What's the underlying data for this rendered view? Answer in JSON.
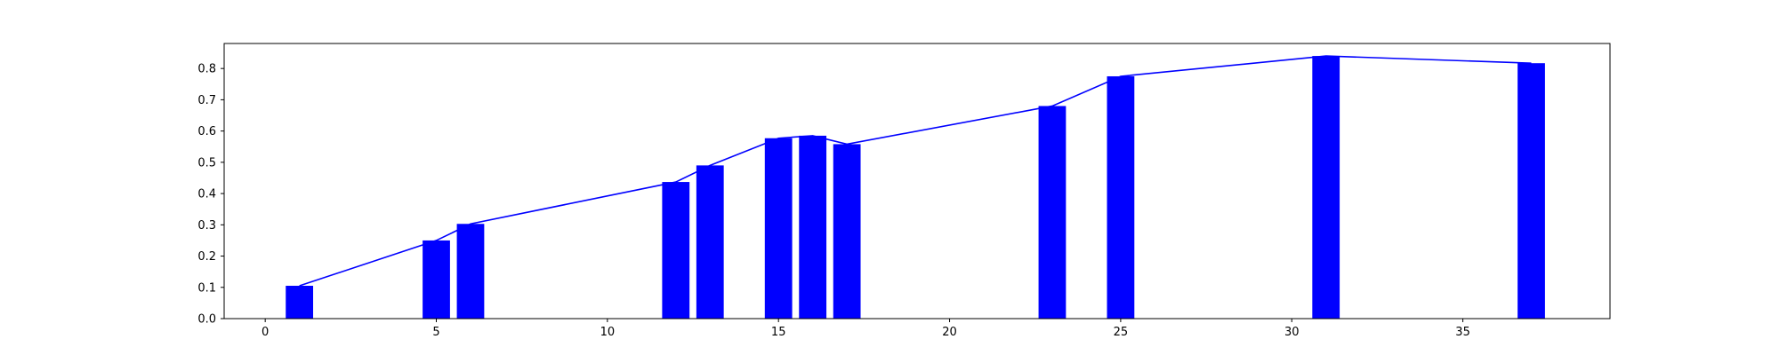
{
  "chart_data": {
    "type": "bar",
    "title": "",
    "xlabel": "",
    "ylabel": "",
    "xlim": [
      -1.2,
      39.3
    ],
    "ylim": [
      0,
      0.88
    ],
    "grid": false,
    "legend": "none",
    "bar_width": 0.8,
    "colors": {
      "bars": "#0000ff",
      "line": "#0000ff",
      "axes": "#000000"
    },
    "x_ticks": [
      0,
      5,
      10,
      15,
      20,
      25,
      30,
      35
    ],
    "x_tick_labels": [
      "0",
      "5",
      "10",
      "15",
      "20",
      "25",
      "30",
      "35"
    ],
    "y_ticks": [
      0.0,
      0.1,
      0.2,
      0.3,
      0.4,
      0.5,
      0.6,
      0.7,
      0.8
    ],
    "y_tick_labels": [
      "0.0",
      "0.1",
      "0.2",
      "0.3",
      "0.4",
      "0.5",
      "0.6",
      "0.7",
      "0.8"
    ],
    "series": [
      {
        "type": "bar",
        "x": [
          1,
          5,
          6,
          12,
          13,
          15,
          16,
          17,
          23,
          25,
          31,
          37
        ],
        "values": [
          0.105,
          0.25,
          0.303,
          0.437,
          0.49,
          0.577,
          0.585,
          0.558,
          0.68,
          0.775,
          0.84,
          0.817
        ]
      },
      {
        "type": "line",
        "x": [
          1,
          5,
          6,
          12,
          13,
          15,
          16,
          17,
          23,
          25,
          31,
          37
        ],
        "values": [
          0.105,
          0.25,
          0.303,
          0.437,
          0.49,
          0.577,
          0.585,
          0.558,
          0.68,
          0.775,
          0.84,
          0.817
        ]
      }
    ]
  }
}
